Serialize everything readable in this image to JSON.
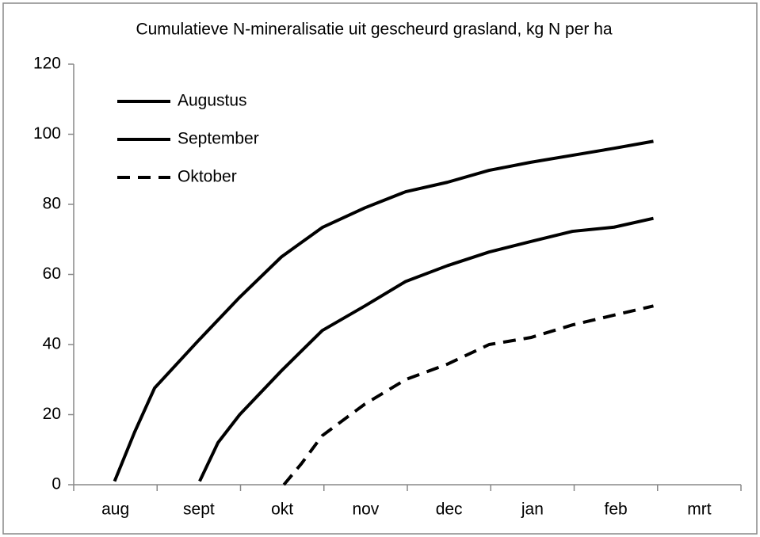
{
  "chart_data": {
    "type": "line",
    "title": "Cumulatieve N-mineralisatie uit gescheurd grasland, kg N per ha",
    "categories": [
      "aug",
      "sept",
      "okt",
      "nov",
      "dec",
      "jan",
      "feb",
      "mrt"
    ],
    "xlim": [
      0,
      8
    ],
    "ylim": [
      0,
      120
    ],
    "yticks": [
      0,
      20,
      40,
      60,
      80,
      100,
      120
    ],
    "grid": false,
    "legend": "top-left",
    "series": [
      {
        "name": "Augustus",
        "color": "#000000",
        "dashed": false,
        "x": [
          0.49,
          0.73,
          0.97,
          1.49,
          1.99,
          2.49,
          2.98,
          3.49,
          3.98,
          4.48,
          4.98,
          5.48,
          5.98,
          6.48,
          6.95
        ],
        "values": [
          1,
          15,
          27.6,
          41,
          53.5,
          65,
          73.4,
          79,
          83.6,
          86.3,
          89.7,
          92,
          94,
          96,
          98
        ]
      },
      {
        "name": "September",
        "color": "#000000",
        "dashed": false,
        "x": [
          1.51,
          1.73,
          1.99,
          2.49,
          2.98,
          3.49,
          3.98,
          4.48,
          4.98,
          5.48,
          5.98,
          6.48,
          6.95
        ],
        "values": [
          1,
          12,
          20,
          32.5,
          44,
          51,
          58,
          62.5,
          66.4,
          69.4,
          72.3,
          73.5,
          76
        ]
      },
      {
        "name": "Oktober",
        "color": "#000000",
        "dashed": true,
        "x": [
          2.52,
          2.73,
          2.98,
          3.49,
          3.98,
          4.48,
          4.98,
          5.48,
          5.98,
          6.48,
          6.95
        ],
        "values": [
          0,
          6,
          14,
          23,
          30,
          34.4,
          40,
          42,
          45.6,
          48.4,
          51
        ]
      }
    ]
  }
}
